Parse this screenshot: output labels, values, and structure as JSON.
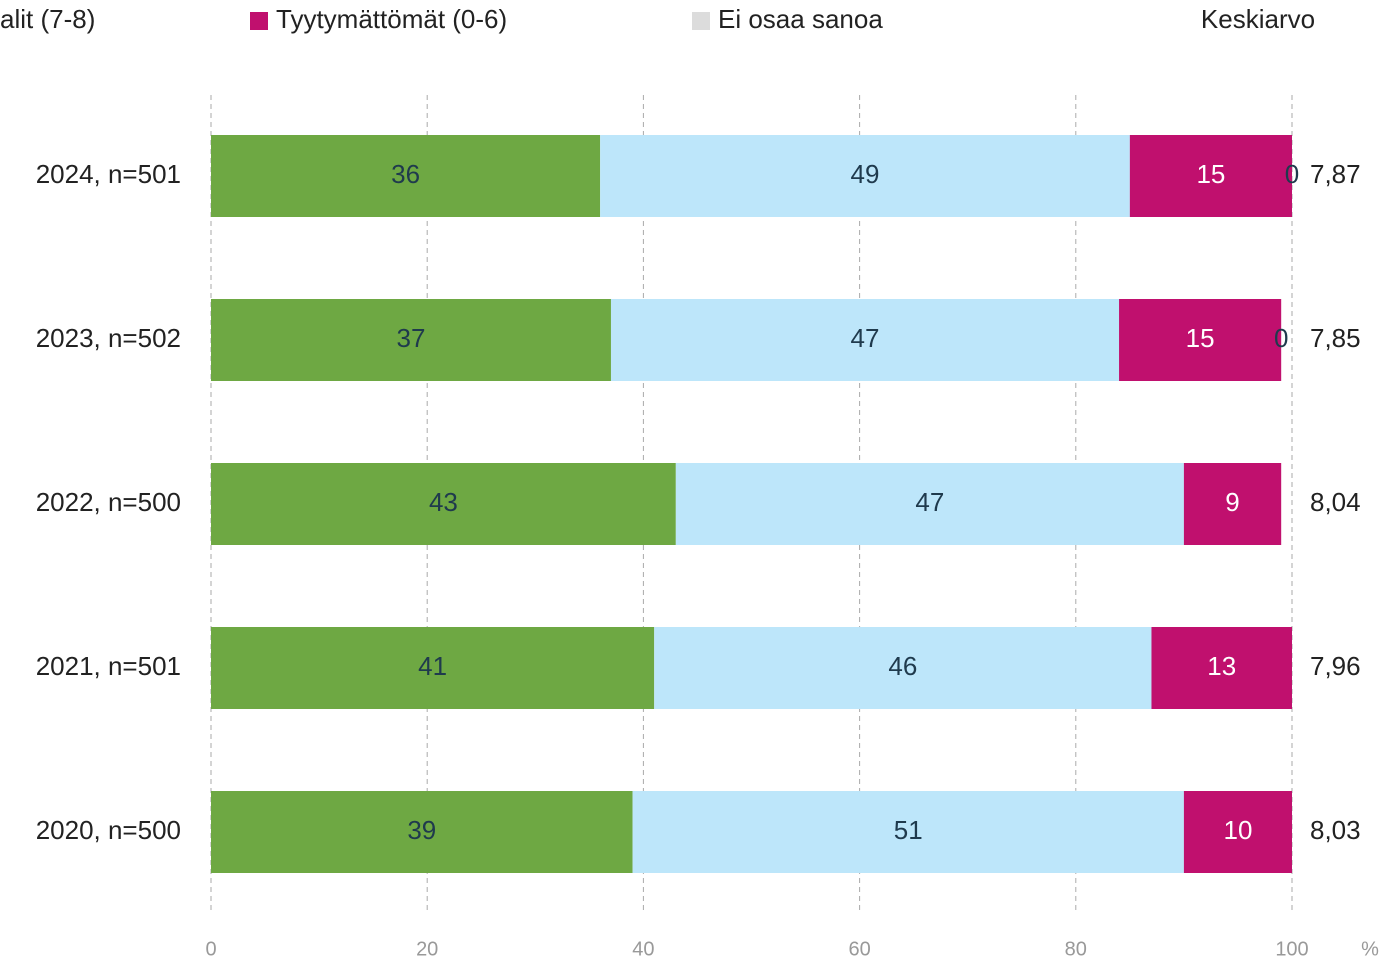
{
  "chart_data": {
    "type": "stacked_barh",
    "categories": [
      "2024, n=501",
      "2023, n=502",
      "2022, n=500",
      "2021, n=501",
      "2020, n=500"
    ],
    "series": [
      {
        "color": "#6ea843",
        "values": [
          36,
          37,
          43,
          41,
          39
        ]
      },
      {
        "name": "alit (7-8)",
        "color": "#bde6fa",
        "values": [
          49,
          47,
          47,
          46,
          51
        ]
      },
      {
        "name": "Tyytymättömät (0-6)",
        "color": "#c0106e",
        "values": [
          15,
          15,
          9,
          13,
          10
        ]
      },
      {
        "name": "Ei osaa sanoa",
        "color": "#dcdcdc",
        "values": [
          0,
          0,
          null,
          null,
          null
        ]
      }
    ],
    "mean": {
      "title": "Keskiarvo",
      "values": [
        7.87,
        7.85,
        8.04,
        7.96,
        8.03
      ],
      "value_labels": [
        "7,87",
        "7,85",
        "8,04",
        "7,96",
        "8,03"
      ]
    },
    "xlabel": "%",
    "xlim": [
      0,
      100
    ],
    "xticks": [
      0,
      20,
      40,
      60,
      80,
      100
    ],
    "grid": true
  }
}
